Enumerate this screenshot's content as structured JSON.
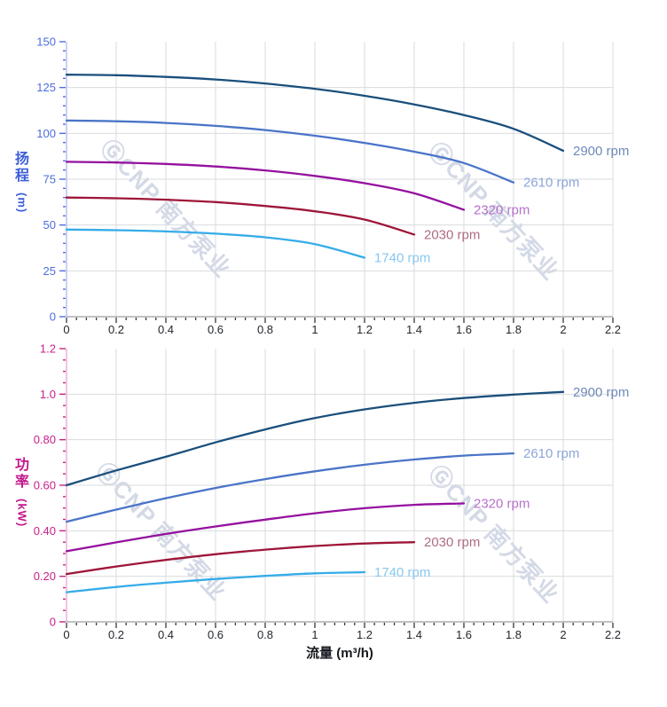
{
  "watermark": {
    "text": "ⒼCNP 南方泵业",
    "color": "#93a2c2"
  },
  "grid_color": "#d9dbde",
  "x_axis_style": {
    "line_color": "#9c9c9c",
    "tick_color": "#33373d",
    "label_color": "#22262c"
  },
  "chart_data": [
    {
      "type": "line",
      "name": "head-curve",
      "ylabel": "扬程 (m)",
      "ylabel_stack": [
        "扬",
        "程"
      ],
      "ylabel_unit": "(m)",
      "xlabel": "",
      "xlim": [
        0,
        2.2
      ],
      "ylim": [
        0,
        150
      ],
      "x_tick_step": 0.2,
      "x_minor_step": 0.04,
      "y_tick_step": 25,
      "y_minor_step": 5,
      "grid": true,
      "legend_position": "end-of-line",
      "x_tick_labels": [
        "0",
        "0.2",
        "0.4",
        "0.6",
        "0.8",
        "1",
        "1.2",
        "1.4",
        "1.6",
        "1.8",
        "2",
        "2.2"
      ],
      "y_tick_labels": [
        "150",
        "125",
        "100",
        "75",
        "50",
        "25",
        "0"
      ],
      "axis": {
        "tick_color": "#4e6cdf",
        "label_color": "#4e6cdf",
        "line_color": "#b3bfec",
        "title_color": "#3a5ed8"
      },
      "series": [
        {
          "name": "2900 rpm",
          "color": "#1a4f7c",
          "label_color": "#6f89ba",
          "x": [
            0,
            0.2,
            0.4,
            0.6,
            0.8,
            1.0,
            1.2,
            1.4,
            1.6,
            1.8,
            2.0
          ],
          "values": [
            132,
            131.7,
            130.8,
            129.4,
            127.2,
            124.3,
            120.5,
            115.8,
            110,
            102.5,
            90.5
          ]
        },
        {
          "name": "2610 rpm",
          "color": "#4a74c8",
          "label_color": "#8ca6d9",
          "x": [
            0,
            0.2,
            0.4,
            0.6,
            0.8,
            1.0,
            1.2,
            1.4,
            1.6,
            1.8
          ],
          "values": [
            107,
            106.6,
            105.7,
            104.1,
            101.8,
            98.7,
            94.8,
            90,
            83.8,
            73.2
          ]
        },
        {
          "name": "2320 rpm",
          "color": "#94119e",
          "label_color": "#b671c9",
          "x": [
            0,
            0.2,
            0.4,
            0.6,
            0.8,
            1.0,
            1.2,
            1.4,
            1.6
          ],
          "values": [
            84.5,
            84.1,
            83.3,
            81.9,
            79.8,
            76.8,
            72.8,
            67.3,
            58.3
          ]
        },
        {
          "name": "2030 rpm",
          "color": "#9e1638",
          "label_color": "#b06c84",
          "x": [
            0,
            0.2,
            0.4,
            0.6,
            0.8,
            1.0,
            1.2,
            1.4
          ],
          "values": [
            65,
            64.6,
            63.8,
            62.5,
            60.4,
            57.5,
            53,
            44.8
          ]
        },
        {
          "name": "1740 rpm",
          "color": "#35ace8",
          "label_color": "#88c8f0",
          "x": [
            0,
            0.2,
            0.4,
            0.6,
            0.8,
            1.0,
            1.2
          ],
          "values": [
            47.5,
            47.2,
            46.5,
            45.3,
            43.3,
            39.6,
            32.2
          ]
        }
      ]
    },
    {
      "type": "line",
      "name": "power-curve",
      "ylabel": "功率 (kW)",
      "ylabel_stack": [
        "功",
        "率"
      ],
      "ylabel_unit": "(kW)",
      "xlabel": "流量 (m³/h)",
      "xlim": [
        0,
        2.2
      ],
      "ylim": [
        0,
        1.2
      ],
      "x_tick_step": 0.2,
      "x_minor_step": 0.04,
      "y_tick_step": 0.2,
      "y_minor_step": 0.05,
      "grid": true,
      "legend_position": "end-of-line",
      "x_tick_labels": [
        "0",
        "0.2",
        "0.4",
        "0.6",
        "0.8",
        "1",
        "1.2",
        "1.4",
        "1.6",
        "1.8",
        "2",
        "2.2"
      ],
      "y_tick_labels": [
        "1.2",
        "1.0",
        "0.80",
        "0.60",
        "0.40",
        "0.20",
        "0"
      ],
      "axis": {
        "tick_color": "#c72189",
        "label_color": "#c72189",
        "line_color": "#ecaad2",
        "title_color": "#c2188c"
      },
      "series": [
        {
          "name": "2900 rpm",
          "color": "#1a4f7c",
          "label_color": "#6f89ba",
          "x": [
            0,
            0.2,
            0.4,
            0.6,
            0.8,
            1.0,
            1.2,
            1.4,
            1.6,
            1.8,
            2.0
          ],
          "values": [
            0.6,
            0.665,
            0.725,
            0.788,
            0.845,
            0.895,
            0.933,
            0.962,
            0.983,
            0.998,
            1.01
          ]
        },
        {
          "name": "2610 rpm",
          "color": "#4a74c8",
          "label_color": "#8ca6d9",
          "x": [
            0,
            0.2,
            0.4,
            0.6,
            0.8,
            1.0,
            1.2,
            1.4,
            1.6,
            1.8
          ],
          "values": [
            0.44,
            0.493,
            0.543,
            0.588,
            0.627,
            0.661,
            0.69,
            0.713,
            0.73,
            0.74
          ]
        },
        {
          "name": "2320 rpm",
          "color": "#94119e",
          "label_color": "#b671c9",
          "x": [
            0,
            0.2,
            0.4,
            0.6,
            0.8,
            1.0,
            1.2,
            1.4,
            1.6
          ],
          "values": [
            0.31,
            0.349,
            0.386,
            0.419,
            0.449,
            0.477,
            0.499,
            0.514,
            0.52
          ]
        },
        {
          "name": "2030 rpm",
          "color": "#9e1638",
          "label_color": "#b06c84",
          "x": [
            0,
            0.2,
            0.4,
            0.6,
            0.8,
            1.0,
            1.2,
            1.4
          ],
          "values": [
            0.21,
            0.243,
            0.272,
            0.297,
            0.317,
            0.333,
            0.344,
            0.35
          ]
        },
        {
          "name": "1740 rpm",
          "color": "#35ace8",
          "label_color": "#88c8f0",
          "x": [
            0,
            0.2,
            0.4,
            0.6,
            0.8,
            1.0,
            1.2
          ],
          "values": [
            0.13,
            0.153,
            0.172,
            0.188,
            0.202,
            0.213,
            0.218
          ]
        }
      ]
    }
  ]
}
